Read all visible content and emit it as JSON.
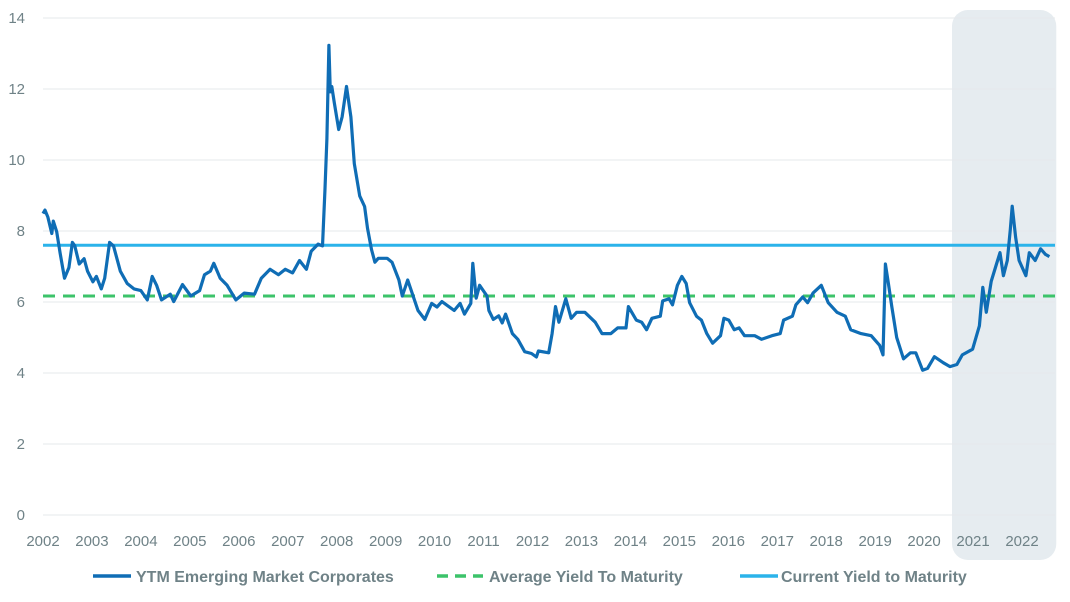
{
  "chart_data": {
    "type": "line",
    "title": "",
    "xlabel": "",
    "ylabel": "",
    "xlim": [
      2002,
      2022.7
    ],
    "ylim": [
      0,
      14
    ],
    "grid": true,
    "legend_position": "bottom",
    "y_ticks": [
      "0",
      "2",
      "4",
      "6",
      "8",
      "10",
      "12",
      "14"
    ],
    "x_ticks": [
      "2002",
      "2003",
      "2004",
      "2005",
      "2006",
      "2007",
      "2008",
      "2009",
      "2010",
      "2011",
      "2012",
      "2013",
      "2014",
      "2015",
      "2016",
      "2017",
      "2018",
      "2019",
      "2020",
      "2021",
      "2022"
    ],
    "highlight_range": [
      2020.57,
      2022.7
    ],
    "colors": {
      "ytm": "#0f6db5",
      "average": "#3cc36a",
      "current": "#2bb3ea",
      "highlight": "#e6ecf0",
      "grid": "#e6e9eb",
      "text": "#6f8287"
    },
    "series": [
      {
        "name": "YTM Emerging Market Corporates",
        "style": "solid",
        "points": [
          [
            2002.0,
            8.49
          ],
          [
            2002.04,
            8.59
          ],
          [
            2002.1,
            8.39
          ],
          [
            2002.18,
            7.93
          ],
          [
            2002.21,
            8.28
          ],
          [
            2002.28,
            7.98
          ],
          [
            2002.35,
            7.38
          ],
          [
            2002.44,
            6.67
          ],
          [
            2002.53,
            6.97
          ],
          [
            2002.6,
            7.68
          ],
          [
            2002.65,
            7.58
          ],
          [
            2002.74,
            7.07
          ],
          [
            2002.84,
            7.22
          ],
          [
            2002.91,
            6.87
          ],
          [
            2003.02,
            6.57
          ],
          [
            2003.09,
            6.72
          ],
          [
            2003.19,
            6.37
          ],
          [
            2003.26,
            6.67
          ],
          [
            2003.36,
            7.68
          ],
          [
            2003.44,
            7.58
          ],
          [
            2003.58,
            6.87
          ],
          [
            2003.72,
            6.52
          ],
          [
            2003.86,
            6.37
          ],
          [
            2004.0,
            6.32
          ],
          [
            2004.13,
            6.06
          ],
          [
            2004.23,
            6.72
          ],
          [
            2004.32,
            6.47
          ],
          [
            2004.42,
            6.06
          ],
          [
            2004.6,
            6.22
          ],
          [
            2004.67,
            6.01
          ],
          [
            2004.85,
            6.49
          ],
          [
            2005.02,
            6.17
          ],
          [
            2005.2,
            6.32
          ],
          [
            2005.3,
            6.77
          ],
          [
            2005.42,
            6.87
          ],
          [
            2005.49,
            7.09
          ],
          [
            2005.62,
            6.67
          ],
          [
            2005.76,
            6.47
          ],
          [
            2005.94,
            6.06
          ],
          [
            2006.11,
            6.25
          ],
          [
            2006.32,
            6.22
          ],
          [
            2006.46,
            6.67
          ],
          [
            2006.64,
            6.92
          ],
          [
            2006.81,
            6.77
          ],
          [
            2006.95,
            6.92
          ],
          [
            2007.1,
            6.82
          ],
          [
            2007.24,
            7.17
          ],
          [
            2007.38,
            6.92
          ],
          [
            2007.48,
            7.43
          ],
          [
            2007.62,
            7.63
          ],
          [
            2007.71,
            7.58
          ],
          [
            2007.76,
            9.19
          ],
          [
            2007.8,
            10.6
          ],
          [
            2007.84,
            13.23
          ],
          [
            2007.87,
            11.92
          ],
          [
            2007.9,
            12.07
          ],
          [
            2007.95,
            11.61
          ],
          [
            2008.04,
            10.86
          ],
          [
            2008.11,
            11.21
          ],
          [
            2008.2,
            12.07
          ],
          [
            2008.29,
            11.21
          ],
          [
            2008.36,
            9.9
          ],
          [
            2008.47,
            8.99
          ],
          [
            2008.57,
            8.69
          ],
          [
            2008.63,
            8.08
          ],
          [
            2008.71,
            7.48
          ],
          [
            2008.78,
            7.12
          ],
          [
            2008.85,
            7.23
          ],
          [
            2009.03,
            7.23
          ],
          [
            2009.13,
            7.12
          ],
          [
            2009.27,
            6.62
          ],
          [
            2009.34,
            6.17
          ],
          [
            2009.45,
            6.62
          ],
          [
            2009.66,
            5.76
          ],
          [
            2009.8,
            5.51
          ],
          [
            2009.94,
            5.96
          ],
          [
            2010.05,
            5.86
          ],
          [
            2010.15,
            6.01
          ],
          [
            2010.4,
            5.76
          ],
          [
            2010.52,
            5.96
          ],
          [
            2010.61,
            5.66
          ],
          [
            2010.74,
            5.96
          ],
          [
            2010.78,
            7.09
          ],
          [
            2010.85,
            6.11
          ],
          [
            2010.92,
            6.47
          ],
          [
            2011.07,
            6.17
          ],
          [
            2011.11,
            5.76
          ],
          [
            2011.2,
            5.51
          ],
          [
            2011.31,
            5.61
          ],
          [
            2011.38,
            5.41
          ],
          [
            2011.45,
            5.66
          ],
          [
            2011.59,
            5.11
          ],
          [
            2011.7,
            4.95
          ],
          [
            2011.84,
            4.6
          ],
          [
            2011.98,
            4.55
          ],
          [
            2012.08,
            4.45
          ],
          [
            2012.12,
            4.62
          ],
          [
            2012.33,
            4.57
          ],
          [
            2012.4,
            5.11
          ],
          [
            2012.47,
            5.87
          ],
          [
            2012.54,
            5.43
          ],
          [
            2012.68,
            6.09
          ],
          [
            2012.79,
            5.54
          ],
          [
            2012.9,
            5.71
          ],
          [
            2013.07,
            5.71
          ],
          [
            2013.28,
            5.43
          ],
          [
            2013.42,
            5.11
          ],
          [
            2013.6,
            5.11
          ],
          [
            2013.74,
            5.27
          ],
          [
            2013.91,
            5.27
          ],
          [
            2013.96,
            5.87
          ],
          [
            2014.12,
            5.49
          ],
          [
            2014.23,
            5.43
          ],
          [
            2014.33,
            5.22
          ],
          [
            2014.44,
            5.54
          ],
          [
            2014.61,
            5.6
          ],
          [
            2014.66,
            6.03
          ],
          [
            2014.79,
            6.09
          ],
          [
            2014.86,
            5.92
          ],
          [
            2014.96,
            6.47
          ],
          [
            2015.05,
            6.72
          ],
          [
            2015.14,
            6.52
          ],
          [
            2015.21,
            5.98
          ],
          [
            2015.35,
            5.6
          ],
          [
            2015.45,
            5.49
          ],
          [
            2015.56,
            5.11
          ],
          [
            2015.68,
            4.84
          ],
          [
            2015.84,
            5.05
          ],
          [
            2015.91,
            5.54
          ],
          [
            2016.01,
            5.49
          ],
          [
            2016.12,
            5.22
          ],
          [
            2016.22,
            5.27
          ],
          [
            2016.33,
            5.05
          ],
          [
            2016.54,
            5.05
          ],
          [
            2016.68,
            4.95
          ],
          [
            2016.89,
            5.05
          ],
          [
            2017.06,
            5.11
          ],
          [
            2017.13,
            5.49
          ],
          [
            2017.31,
            5.6
          ],
          [
            2017.38,
            5.92
          ],
          [
            2017.52,
            6.14
          ],
          [
            2017.62,
            5.98
          ],
          [
            2017.73,
            6.25
          ],
          [
            2017.9,
            6.47
          ],
          [
            2018.04,
            5.98
          ],
          [
            2018.22,
            5.71
          ],
          [
            2018.39,
            5.6
          ],
          [
            2018.5,
            5.22
          ],
          [
            2018.71,
            5.11
          ],
          [
            2018.92,
            5.05
          ],
          [
            2019.09,
            4.78
          ],
          [
            2019.16,
            4.51
          ],
          [
            2019.21,
            7.07
          ],
          [
            2019.27,
            6.52
          ],
          [
            2019.34,
            5.87
          ],
          [
            2019.44,
            5.0
          ],
          [
            2019.58,
            4.4
          ],
          [
            2019.72,
            4.57
          ],
          [
            2019.83,
            4.57
          ],
          [
            2019.97,
            4.08
          ],
          [
            2020.07,
            4.13
          ],
          [
            2020.21,
            4.46
          ],
          [
            2020.39,
            4.29
          ],
          [
            2020.53,
            4.18
          ],
          [
            2020.67,
            4.24
          ],
          [
            2020.78,
            4.51
          ],
          [
            2020.99,
            4.67
          ],
          [
            2021.13,
            5.33
          ],
          [
            2021.2,
            6.41
          ],
          [
            2021.27,
            5.71
          ],
          [
            2021.37,
            6.58
          ],
          [
            2021.48,
            7.07
          ],
          [
            2021.55,
            7.39
          ],
          [
            2021.62,
            6.74
          ],
          [
            2021.7,
            7.17
          ],
          [
            2021.76,
            8.04
          ],
          [
            2021.8,
            8.7
          ],
          [
            2021.87,
            7.83
          ],
          [
            2021.94,
            7.17
          ],
          [
            2022.08,
            6.74
          ],
          [
            2022.15,
            7.39
          ],
          [
            2022.27,
            7.17
          ],
          [
            2022.38,
            7.5
          ],
          [
            2022.48,
            7.34
          ],
          [
            2022.56,
            7.28
          ]
        ]
      },
      {
        "name": "Average Yield To Maturity",
        "style": "dashed",
        "value": 6.17
      },
      {
        "name": "Current Yield to Maturity",
        "style": "solid",
        "value": 7.6
      }
    ]
  }
}
